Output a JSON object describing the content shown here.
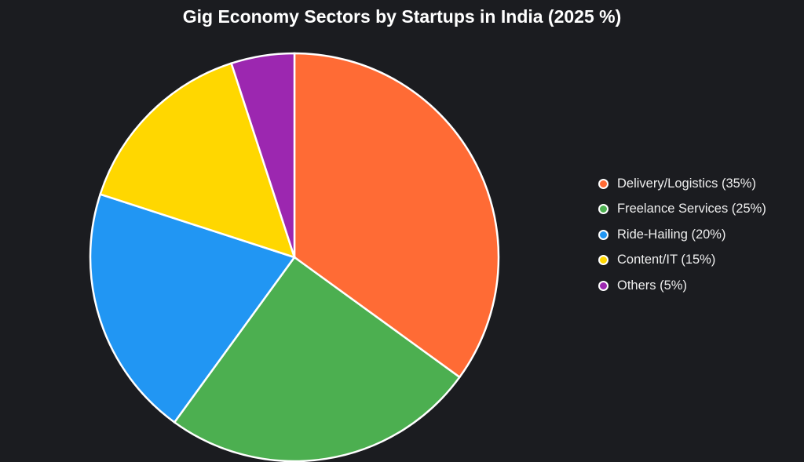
{
  "chart_data": {
    "type": "pie",
    "title": "Gig Economy Sectors by Startups in India (2025 %)",
    "legend_position": "right",
    "slices": [
      {
        "label": "Delivery/Logistics (35%)",
        "value": 35,
        "color": "#FF6B35"
      },
      {
        "label": "Freelance Services (25%)",
        "value": 25,
        "color": "#4CAF50"
      },
      {
        "label": "Ride-Hailing (20%)",
        "value": 20,
        "color": "#2196F3"
      },
      {
        "label": "Content/IT (15%)",
        "value": 15,
        "color": "#FFD700"
      },
      {
        "label": "Others (5%)",
        "value": 5,
        "color": "#9C27B0"
      }
    ]
  }
}
